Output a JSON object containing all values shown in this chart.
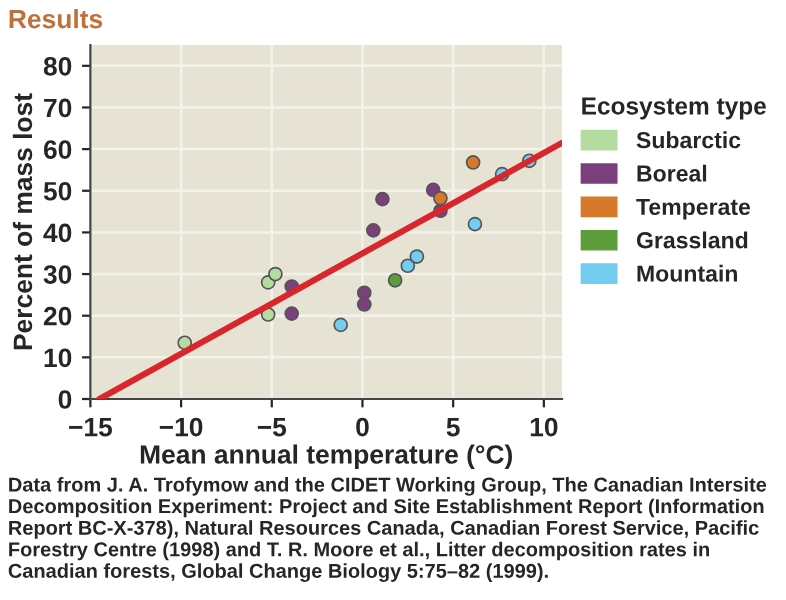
{
  "chart_data": {
    "type": "scatter",
    "title": "Results",
    "xlabel": "Mean annual temperature (°C)",
    "ylabel": "Percent of mass lost",
    "legend_title": "Ecosystem type",
    "series": [
      {
        "name": "Subarctic",
        "color": "#b5dca0",
        "x": [
          -9.8,
          -5.2,
          -4.8,
          -5.2
        ],
        "values": [
          13.5,
          28,
          30,
          20.3
        ]
      },
      {
        "name": "Boreal",
        "color": "#7b3f7d",
        "x": [
          -3.9,
          -3.9,
          0.6,
          1.1,
          0.1,
          0.1,
          3.9,
          4.3
        ],
        "values": [
          27,
          20.5,
          40.5,
          48,
          25.5,
          22.7,
          50.2,
          45.2
        ]
      },
      {
        "name": "Temperate",
        "color": "#d7782a",
        "x": [
          6.1,
          4.3
        ],
        "values": [
          56.8,
          48.2
        ]
      },
      {
        "name": "Grassland",
        "color": "#5e9d3c",
        "x": [
          1.8
        ],
        "values": [
          28.5
        ]
      },
      {
        "name": "Mountain",
        "color": "#72cdf0",
        "x": [
          -1.2,
          2.5,
          3.0,
          6.2,
          7.7,
          9.2
        ],
        "values": [
          17.8,
          32,
          34.2,
          42,
          54,
          57.2
        ]
      },
      {
        "type": "line",
        "marker": "none",
        "color": "#d8262c",
        "x": [
          -14.5,
          11
        ],
        "values": [
          0,
          61.5
        ]
      }
    ],
    "xlim": [
      -15,
      11
    ],
    "ylim": [
      0,
      85
    ],
    "xticks": [
      {
        "value": -15,
        "label": "−15"
      },
      {
        "value": -10,
        "label": "−10"
      },
      {
        "value": -5,
        "label": "−5"
      },
      0,
      5,
      10
    ],
    "yticks": [
      0,
      10,
      20,
      30,
      40,
      50,
      60,
      70,
      80
    ],
    "grid": true,
    "legend": "right",
    "marker": "circle",
    "annotations": [
      "Data from J. A. Trofymow and the CIDET Working Group, The Canadian Intersite Decomposition Experiment: Project and Site Establishment Report (Information Report BC-X-378), Natural Resources Canada, Canadian Forest Service, Pacific Forestry Centre (1998) and T. R. Moore et al., Litter decomposition rates in Canadian forests, Global Change Biology 5:75–82 (1999)."
    ]
  }
}
